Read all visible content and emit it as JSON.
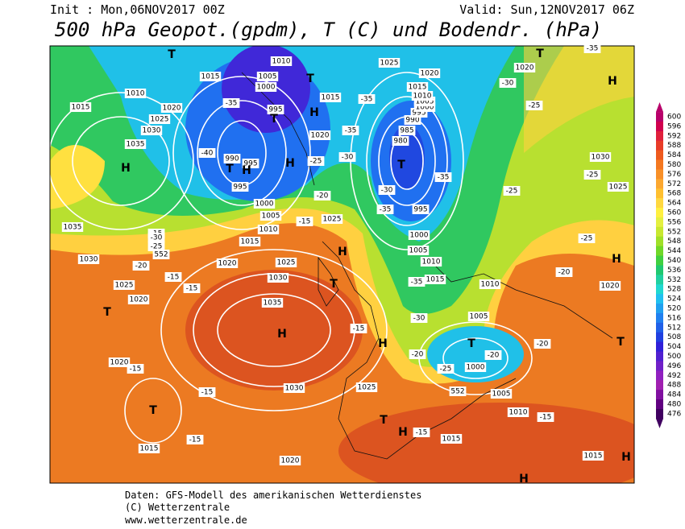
{
  "header": {
    "init": "Init : Mon,06NOV2017 00Z",
    "valid": "Valid: Sun,12NOV2017 06Z",
    "title": "500 hPa Geopot.(gpdm), T (C) und Bodendr. (hPa)"
  },
  "colorbar": {
    "levels": [
      600,
      596,
      592,
      588,
      584,
      580,
      576,
      572,
      568,
      564,
      560,
      556,
      552,
      548,
      544,
      540,
      536,
      532,
      528,
      524,
      520,
      516,
      512,
      508,
      504,
      500,
      496,
      492,
      488,
      484,
      480,
      476
    ],
    "colors": [
      "#b8006a",
      "#d0004e",
      "#e0203c",
      "#e83c28",
      "#ee5a1e",
      "#f47820",
      "#f89028",
      "#fca830",
      "#ffc030",
      "#ffd840",
      "#fff040",
      "#e4f040",
      "#c8e830",
      "#a0e028",
      "#70d828",
      "#40d040",
      "#20c870",
      "#20d0a0",
      "#20d8d0",
      "#20c0f0",
      "#20a0f0",
      "#2080f0",
      "#2060e8",
      "#2040e0",
      "#3020d8",
      "#5020d0",
      "#7020c8",
      "#9020c0",
      "#a020b0",
      "#8010a0",
      "#600080",
      "#400060"
    ]
  },
  "map_labels": [
    "1015",
    "1010",
    "1020",
    "1025",
    "1030",
    "1035",
    "H",
    "1035",
    "1030",
    "1025",
    "1020",
    "T",
    "1020",
    "T",
    "1015",
    "H",
    "1035",
    "1030",
    "1025",
    "1030",
    "1025",
    "1020",
    "1015",
    "1010",
    "1005",
    "1000",
    "T",
    "1010",
    "1005",
    "1015",
    "1010",
    "1005",
    "1000",
    "995",
    "T",
    "980",
    "985",
    "990",
    "995",
    "1000",
    "1005",
    "1010",
    "1015",
    "1020",
    "1025",
    "1020",
    "T",
    "H",
    "1030",
    "1025",
    "H",
    "1020",
    "T",
    "1015",
    "H",
    "H",
    "T",
    "1015",
    "1010",
    "1005",
    "1000",
    "T",
    "995",
    "T",
    "H",
    "1015",
    "1020",
    "990",
    "995",
    "T",
    "H",
    "995",
    "H",
    "1000",
    "1005",
    "1010",
    "1015",
    "1020",
    "1025",
    "H",
    "T",
    "H",
    "T",
    "H",
    "-35",
    "-30",
    "-25",
    "-20",
    "-15",
    "-15",
    "-30",
    "-25",
    "-20",
    "-15",
    "-15",
    "-15",
    "-15",
    "-15",
    "-15",
    "-15",
    "-15",
    "-20",
    "-20",
    "-20",
    "-25",
    "-30",
    "-35",
    "-35",
    "-35",
    "-30",
    "-25",
    "-25",
    "-25",
    "-20",
    "-25",
    "-30",
    "-35",
    "-40",
    "-35",
    "-35",
    "552",
    "552"
  ],
  "footer": [
    "Daten: GFS-Modell des amerikanischen Wetterdienstes",
    "(C) Wetterzentrale",
    "www.wetterzentrale.de"
  ]
}
